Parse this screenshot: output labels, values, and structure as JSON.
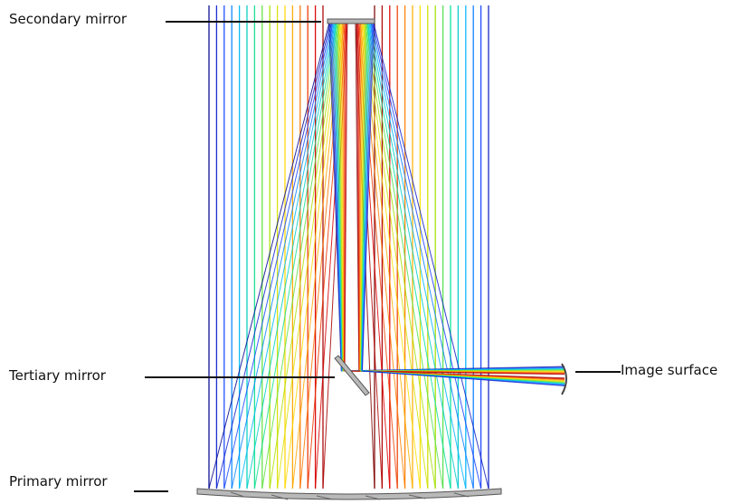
{
  "labels": {
    "secondary": "Secondary mirror",
    "tertiary": "Tertiary mirror",
    "image": "Image surface",
    "primary": "Primary mirror"
  },
  "colors": {
    "ray_gradient": [
      "#000080",
      "#1a3cff",
      "#00b4ff",
      "#00e0a0",
      "#a0e000",
      "#ffe000",
      "#ff8000",
      "#e00000",
      "#800000"
    ],
    "mirror_fill": "#b0b0b0",
    "mirror_stroke": "#555555",
    "leader_line": "#111111"
  }
}
